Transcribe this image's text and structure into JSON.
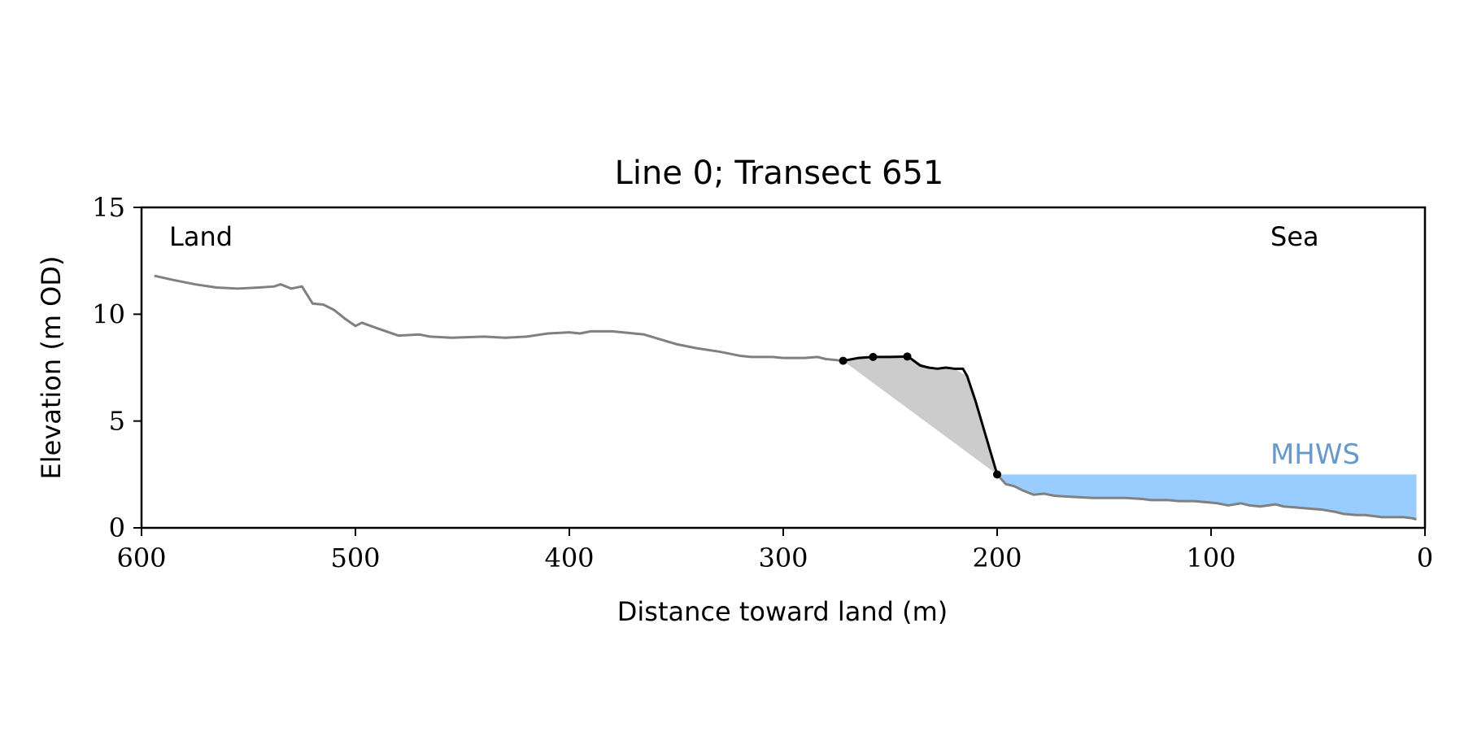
{
  "chart_data": {
    "type": "line",
    "title": "Line 0; Transect 651",
    "xlabel": "Distance toward land (m)",
    "ylabel": "Elevation (m OD)",
    "xlim": [
      600,
      0
    ],
    "ylim": [
      0,
      15
    ],
    "x_ticks": [
      600,
      500,
      400,
      300,
      200,
      100,
      0
    ],
    "y_ticks": [
      0,
      5,
      10,
      15
    ],
    "grid": false,
    "annotations": {
      "land": "Land",
      "sea": "Sea",
      "mhws": "MHWS"
    },
    "colors": {
      "profile": "#808080",
      "cliff": "#000000",
      "cliff_fill": "#cccccc",
      "water": "#99ccff",
      "mhws_text": "#6699cc"
    },
    "mhws_level": 2.5,
    "series": [
      {
        "x": [
          594,
          585,
          575,
          565,
          555,
          545,
          538,
          535,
          530,
          525,
          520,
          515,
          510,
          505,
          500,
          497,
          490,
          480,
          470,
          465,
          455,
          440,
          430,
          420,
          410,
          400,
          395,
          390,
          380,
          375,
          365,
          355,
          350,
          340,
          330,
          320,
          315,
          305,
          300,
          290,
          284,
          280,
          275,
          272
        ],
        "y": [
          11.8,
          11.6,
          11.4,
          11.25,
          11.2,
          11.25,
          11.3,
          11.4,
          11.2,
          11.3,
          10.5,
          10.45,
          10.2,
          9.8,
          9.45,
          9.6,
          9.35,
          9.0,
          9.05,
          8.95,
          8.9,
          8.95,
          8.9,
          8.95,
          9.1,
          9.15,
          9.1,
          9.2,
          9.2,
          9.15,
          9.05,
          8.75,
          8.6,
          8.4,
          8.25,
          8.05,
          8.0,
          8.0,
          7.95,
          7.95,
          8.0,
          7.9,
          7.85,
          7.82
        ]
      },
      {
        "x": [
          272,
          265,
          258,
          250,
          242,
          240,
          236,
          232,
          228,
          224,
          220,
          216,
          214,
          210,
          205,
          200
        ],
        "y": [
          7.82,
          7.95,
          8.0,
          8.0,
          8.02,
          7.9,
          7.6,
          7.5,
          7.45,
          7.5,
          7.45,
          7.45,
          7.1,
          5.9,
          4.2,
          2.5
        ]
      },
      {
        "x": [
          200,
          196,
          192,
          188,
          183,
          178,
          173,
          165,
          155,
          145,
          140,
          132,
          128,
          120,
          115,
          108,
          102,
          97,
          92,
          86,
          82,
          77,
          70,
          66,
          60,
          54,
          48,
          42,
          38,
          32,
          28,
          20,
          15,
          10,
          6,
          4
        ],
        "y": [
          2.5,
          2.05,
          1.95,
          1.75,
          1.55,
          1.6,
          1.5,
          1.45,
          1.4,
          1.4,
          1.4,
          1.35,
          1.3,
          1.3,
          1.25,
          1.25,
          1.2,
          1.15,
          1.05,
          1.15,
          1.05,
          1.0,
          1.1,
          1.0,
          0.95,
          0.9,
          0.85,
          0.75,
          0.65,
          0.6,
          0.6,
          0.5,
          0.5,
          0.5,
          0.45,
          0.4
        ]
      }
    ],
    "markers": {
      "x": [
        272,
        258,
        242,
        200
      ],
      "y": [
        7.82,
        8.0,
        8.02,
        2.5
      ]
    },
    "shaded_wedge": {
      "x": [
        272,
        258,
        242,
        232,
        220,
        214,
        200
      ],
      "y": [
        7.82,
        8.0,
        8.02,
        7.5,
        7.45,
        7.1,
        2.5
      ]
    },
    "water_surface": {
      "x_start": 200,
      "x_end": 4
    }
  }
}
